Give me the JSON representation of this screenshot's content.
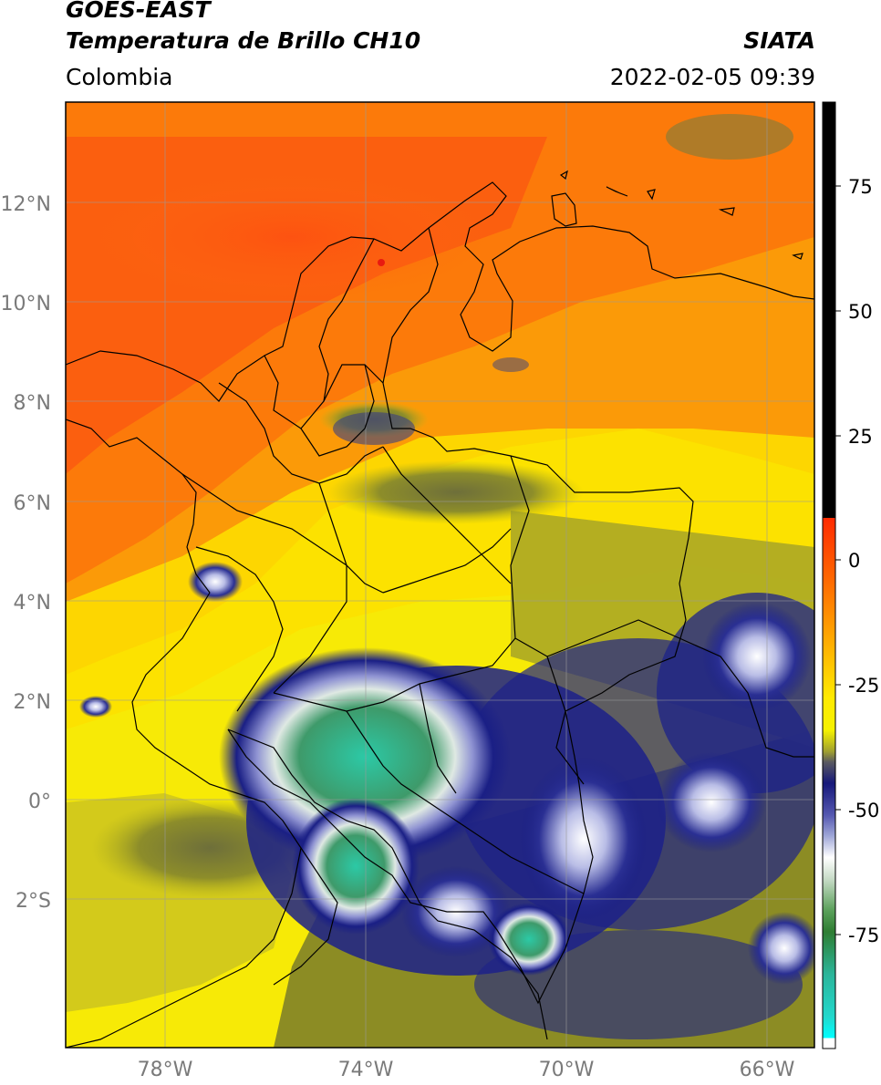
{
  "header": {
    "title_line1": "GOES-EAST",
    "title_line2": "Temperatura de Brillo CH10",
    "agency": "SIATA",
    "region": "Colombia",
    "timestamp": "2022-02-05 09:39"
  },
  "map": {
    "lat_ticks": [
      "12°N",
      "10°N",
      "8°N",
      "6°N",
      "4°N",
      "2°N",
      "0°",
      "2°S"
    ],
    "lon_ticks": [
      "78°W",
      "74°W",
      "70°W",
      "66°W"
    ],
    "extent": {
      "lon_min": -80,
      "lon_max": -65,
      "lat_min": -4.5,
      "lat_max": 14
    }
  },
  "colorbar": {
    "ticks": [
      "75",
      "50",
      "25",
      "0",
      "-25",
      "-50",
      "-75"
    ],
    "range": [
      -95,
      90
    ],
    "colors": {
      "black": "#000000",
      "red": "#e8230b",
      "orange": "#fb8c00",
      "yellow": "#f5f200",
      "olive": "#8a8a22",
      "navy": "#16187a",
      "white": "#ffffff",
      "green": "#3c8c3c",
      "cyan": "#22d8cc"
    }
  }
}
